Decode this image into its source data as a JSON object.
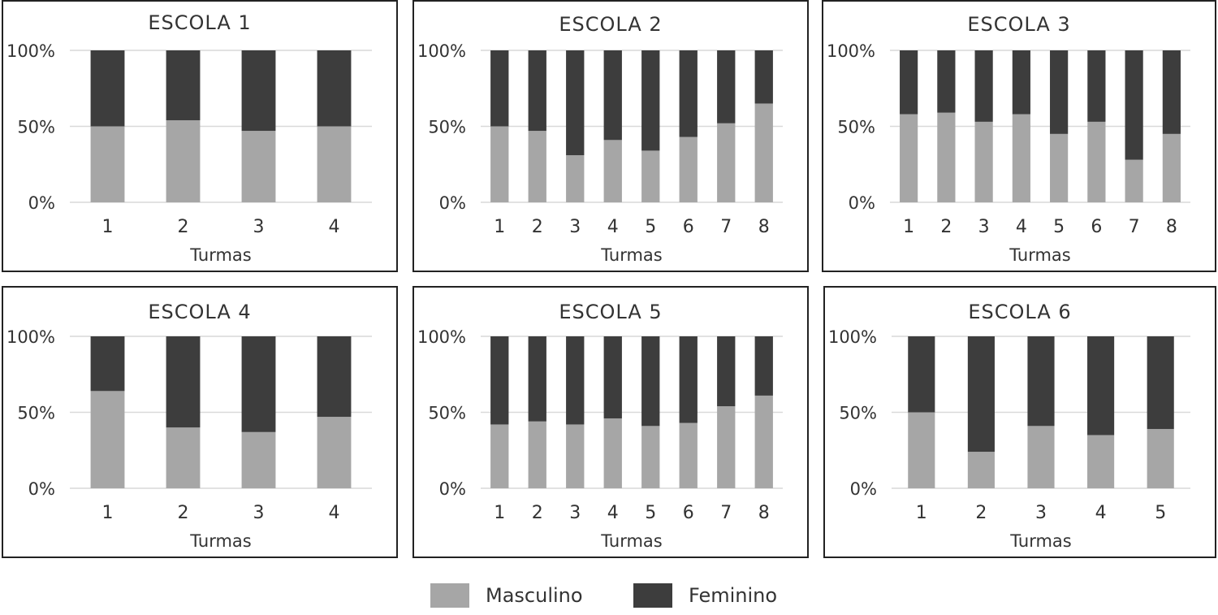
{
  "chart_data": [
    {
      "type": "bar",
      "stacked": true,
      "percent": true,
      "title": "ESCOLA 1",
      "xlabel": "Turmas",
      "ylabel": "",
      "ylim": [
        0,
        100
      ],
      "yticks": [
        "0%",
        "50%",
        "100%"
      ],
      "categories": [
        "1",
        "2",
        "3",
        "4"
      ],
      "series": [
        {
          "name": "Masculino",
          "values": [
            50,
            54,
            47,
            50
          ]
        },
        {
          "name": "Feminino",
          "values": [
            50,
            46,
            53,
            50
          ]
        }
      ]
    },
    {
      "type": "bar",
      "stacked": true,
      "percent": true,
      "title": "ESCOLA 2",
      "xlabel": "Turmas",
      "ylabel": "",
      "ylim": [
        0,
        100
      ],
      "yticks": [
        "0%",
        "50%",
        "100%"
      ],
      "categories": [
        "1",
        "2",
        "3",
        "4",
        "5",
        "6",
        "7",
        "8"
      ],
      "series": [
        {
          "name": "Masculino",
          "values": [
            50,
            47,
            31,
            41,
            34,
            43,
            52,
            65
          ]
        },
        {
          "name": "Feminino",
          "values": [
            50,
            53,
            69,
            59,
            66,
            57,
            48,
            35
          ]
        }
      ]
    },
    {
      "type": "bar",
      "stacked": true,
      "percent": true,
      "title": "ESCOLA 3",
      "xlabel": "Turmas",
      "ylabel": "",
      "ylim": [
        0,
        100
      ],
      "yticks": [
        "0%",
        "50%",
        "100%"
      ],
      "categories": [
        "1",
        "2",
        "3",
        "4",
        "5",
        "6",
        "7",
        "8"
      ],
      "series": [
        {
          "name": "Masculino",
          "values": [
            58,
            59,
            53,
            58,
            45,
            53,
            28,
            45
          ]
        },
        {
          "name": "Feminino",
          "values": [
            42,
            41,
            47,
            42,
            55,
            47,
            72,
            55
          ]
        }
      ]
    },
    {
      "type": "bar",
      "stacked": true,
      "percent": true,
      "title": "ESCOLA 4",
      "xlabel": "Turmas",
      "ylabel": "",
      "ylim": [
        0,
        100
      ],
      "yticks": [
        "0%",
        "50%",
        "100%"
      ],
      "categories": [
        "1",
        "2",
        "3",
        "4"
      ],
      "series": [
        {
          "name": "Masculino",
          "values": [
            64,
            40,
            37,
            47
          ]
        },
        {
          "name": "Feminino",
          "values": [
            36,
            60,
            63,
            53
          ]
        }
      ]
    },
    {
      "type": "bar",
      "stacked": true,
      "percent": true,
      "title": "ESCOLA 5",
      "xlabel": "Turmas",
      "ylabel": "",
      "ylim": [
        0,
        100
      ],
      "yticks": [
        "0%",
        "50%",
        "100%"
      ],
      "categories": [
        "1",
        "2",
        "3",
        "4",
        "5",
        "6",
        "7",
        "8"
      ],
      "series": [
        {
          "name": "Masculino",
          "values": [
            42,
            44,
            42,
            46,
            41,
            43,
            54,
            61
          ]
        },
        {
          "name": "Feminino",
          "values": [
            58,
            56,
            58,
            54,
            59,
            57,
            46,
            39
          ]
        }
      ]
    },
    {
      "type": "bar",
      "stacked": true,
      "percent": true,
      "title": "ESCOLA 6",
      "xlabel": "Turmas",
      "ylabel": "",
      "ylim": [
        0,
        100
      ],
      "yticks": [
        "0%",
        "50%",
        "100%"
      ],
      "categories": [
        "1",
        "2",
        "3",
        "4",
        "5"
      ],
      "series": [
        {
          "name": "Masculino",
          "values": [
            50,
            24,
            41,
            35,
            39
          ]
        },
        {
          "name": "Feminino",
          "values": [
            50,
            76,
            59,
            65,
            61
          ]
        }
      ]
    }
  ],
  "legend": {
    "placement": "bottom-center",
    "items": [
      {
        "label": "Masculino",
        "color": "#a6a6a6"
      },
      {
        "label": "Feminino",
        "color": "#3d3d3d"
      }
    ]
  },
  "colors": {
    "masculino": "#a6a6a6",
    "feminino": "#3d3d3d",
    "gridline": "#d9d9d9",
    "text": "#333333"
  }
}
